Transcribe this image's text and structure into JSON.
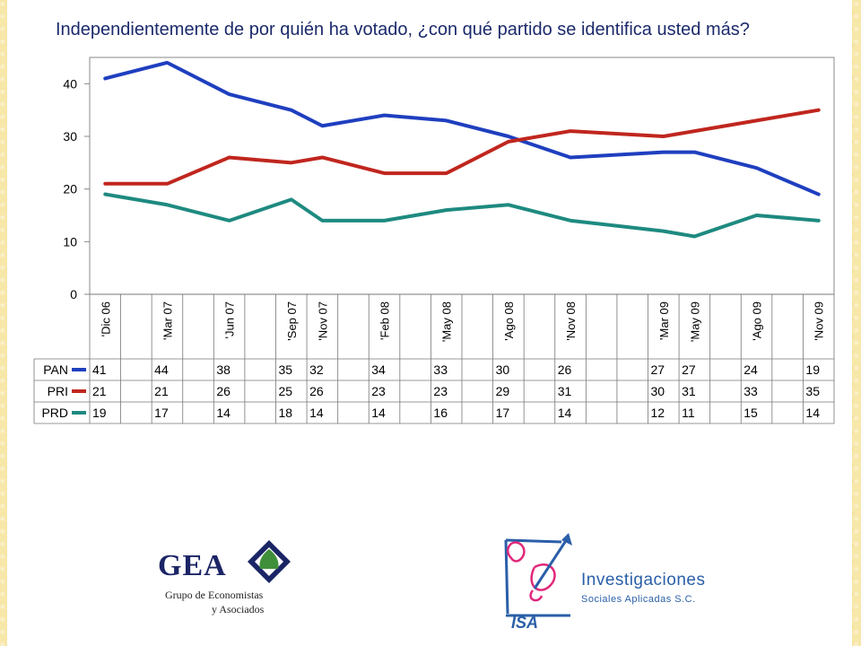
{
  "chart_data": {
    "type": "line",
    "title": "Independientemente de por quién ha votado, ¿con qué partido se identifica usted más?",
    "xlabel": "",
    "ylabel": "",
    "ylim": [
      0,
      45
    ],
    "yticks": [
      0,
      10,
      20,
      30,
      40
    ],
    "grid": false,
    "legend": "data-table",
    "categories": [
      "'Dic 06",
      "'Mar 07",
      "'Jun 07",
      "'Sep 07",
      "'Nov 07",
      "'Feb 08",
      "'May 08",
      "'Ago 08",
      "'Nov 08",
      "'Mar 09",
      "'May 09",
      "'Ago 09",
      "'Nov 09"
    ],
    "x_index": [
      0,
      2,
      4,
      6,
      7,
      9,
      11,
      13,
      15,
      18,
      19,
      21,
      23
    ],
    "x_slots": 24,
    "series": [
      {
        "name": "PAN",
        "color": "#1f3fbf",
        "values": [
          41,
          44,
          38,
          35,
          32,
          34,
          33,
          30,
          26,
          27,
          27,
          24,
          19
        ]
      },
      {
        "name": "PRI",
        "color": "#c0261e",
        "values": [
          21,
          21,
          26,
          25,
          26,
          23,
          23,
          29,
          31,
          30,
          31,
          33,
          35
        ]
      },
      {
        "name": "PRD",
        "color": "#1e8a80",
        "values": [
          19,
          17,
          14,
          18,
          14,
          14,
          16,
          17,
          14,
          12,
          11,
          15,
          14
        ]
      }
    ]
  },
  "logos": {
    "gea": {
      "name": "GEA",
      "line1": "Grupo de Economistas",
      "line2": "y Asociados"
    },
    "isa": {
      "mark": "ISA",
      "name": "Investigaciones",
      "sub": "Sociales Aplicadas S.C."
    }
  },
  "colors": {
    "gea_green": "#3f8f3a",
    "gea_navy": "#1b2566",
    "isa_blue": "#2a5fa8",
    "isa_pink": "#e0287a"
  }
}
